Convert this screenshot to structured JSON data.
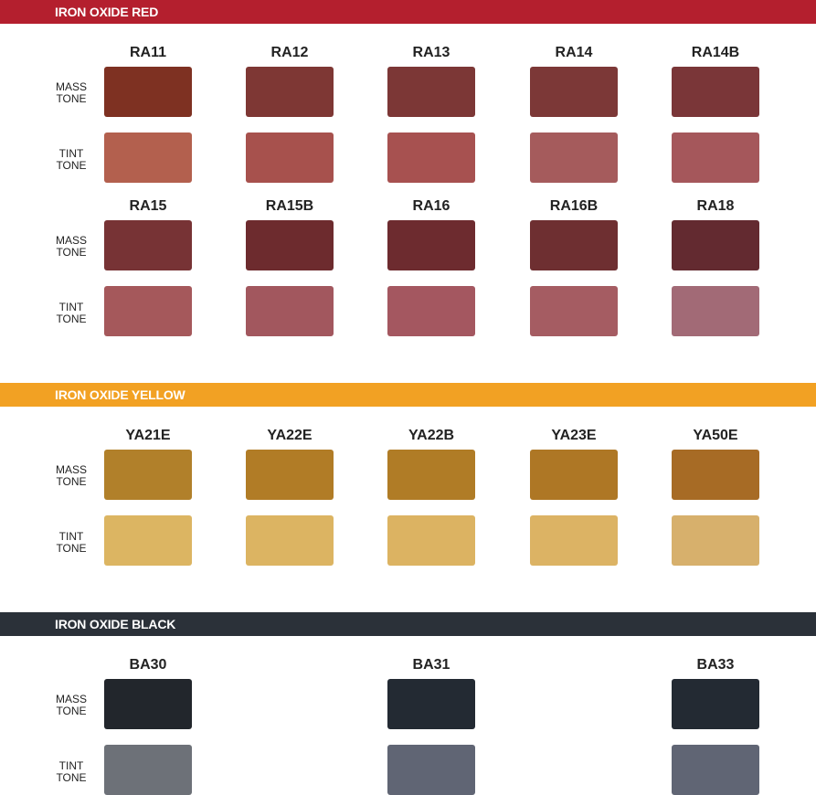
{
  "labels": {
    "mass_1": "MASS",
    "mass_2": "TONE",
    "tint_1": "TINT",
    "tint_2": "TONE"
  },
  "sections": [
    {
      "title": "IRON OXIDE RED",
      "color": "#b41f2e",
      "rows": [
        {
          "swatches": [
            {
              "code": "RA11",
              "mass": "#7e3122",
              "tint": "#b3604e"
            },
            {
              "code": "RA12",
              "mass": "#7e3734",
              "tint": "#a7514d"
            },
            {
              "code": "RA13",
              "mass": "#7c3736",
              "tint": "#a75150"
            },
            {
              "code": "RA14",
              "mass": "#7c3837",
              "tint": "#a55b5c"
            },
            {
              "code": "RA14B",
              "mass": "#7a3638",
              "tint": "#a5575b"
            }
          ]
        },
        {
          "swatches": [
            {
              "code": "RA15",
              "mass": "#773335",
              "tint": "#a5585b"
            },
            {
              "code": "RA15B",
              "mass": "#6d2b2e",
              "tint": "#a2575e"
            },
            {
              "code": "RA16",
              "mass": "#6d2b2f",
              "tint": "#a45760"
            },
            {
              "code": "RA16B",
              "mass": "#6e2f31",
              "tint": "#a55c62"
            },
            {
              "code": "RA18",
              "mass": "#632a30",
              "tint": "#a26a76"
            }
          ]
        }
      ]
    },
    {
      "title": "IRON OXIDE YELLOW",
      "color": "#f2a123",
      "rows": [
        {
          "swatches": [
            {
              "code": "YA21E",
              "mass": "#b1802a",
              "tint": "#dcb562"
            },
            {
              "code": "YA22E",
              "mass": "#b17c26",
              "tint": "#dcb462"
            },
            {
              "code": "YA22B",
              "mass": "#b07c26",
              "tint": "#dcb362"
            },
            {
              "code": "YA23E",
              "mass": "#ae7725",
              "tint": "#dcb364"
            },
            {
              "code": "YA50E",
              "mass": "#a76b25",
              "tint": "#d7b06c"
            }
          ]
        }
      ]
    },
    {
      "title": "IRON OXIDE BLACK",
      "color": "#2b3139",
      "rows": [
        {
          "swatches": [
            {
              "code": "BA30",
              "mass": "#22262c",
              "tint": "#6d7178"
            },
            {
              "code": "BA31",
              "mass": "#232a33",
              "tint": "#606574"
            },
            {
              "code": "BA33",
              "mass": "#232a33",
              "tint": "#606574"
            }
          ]
        }
      ]
    }
  ]
}
